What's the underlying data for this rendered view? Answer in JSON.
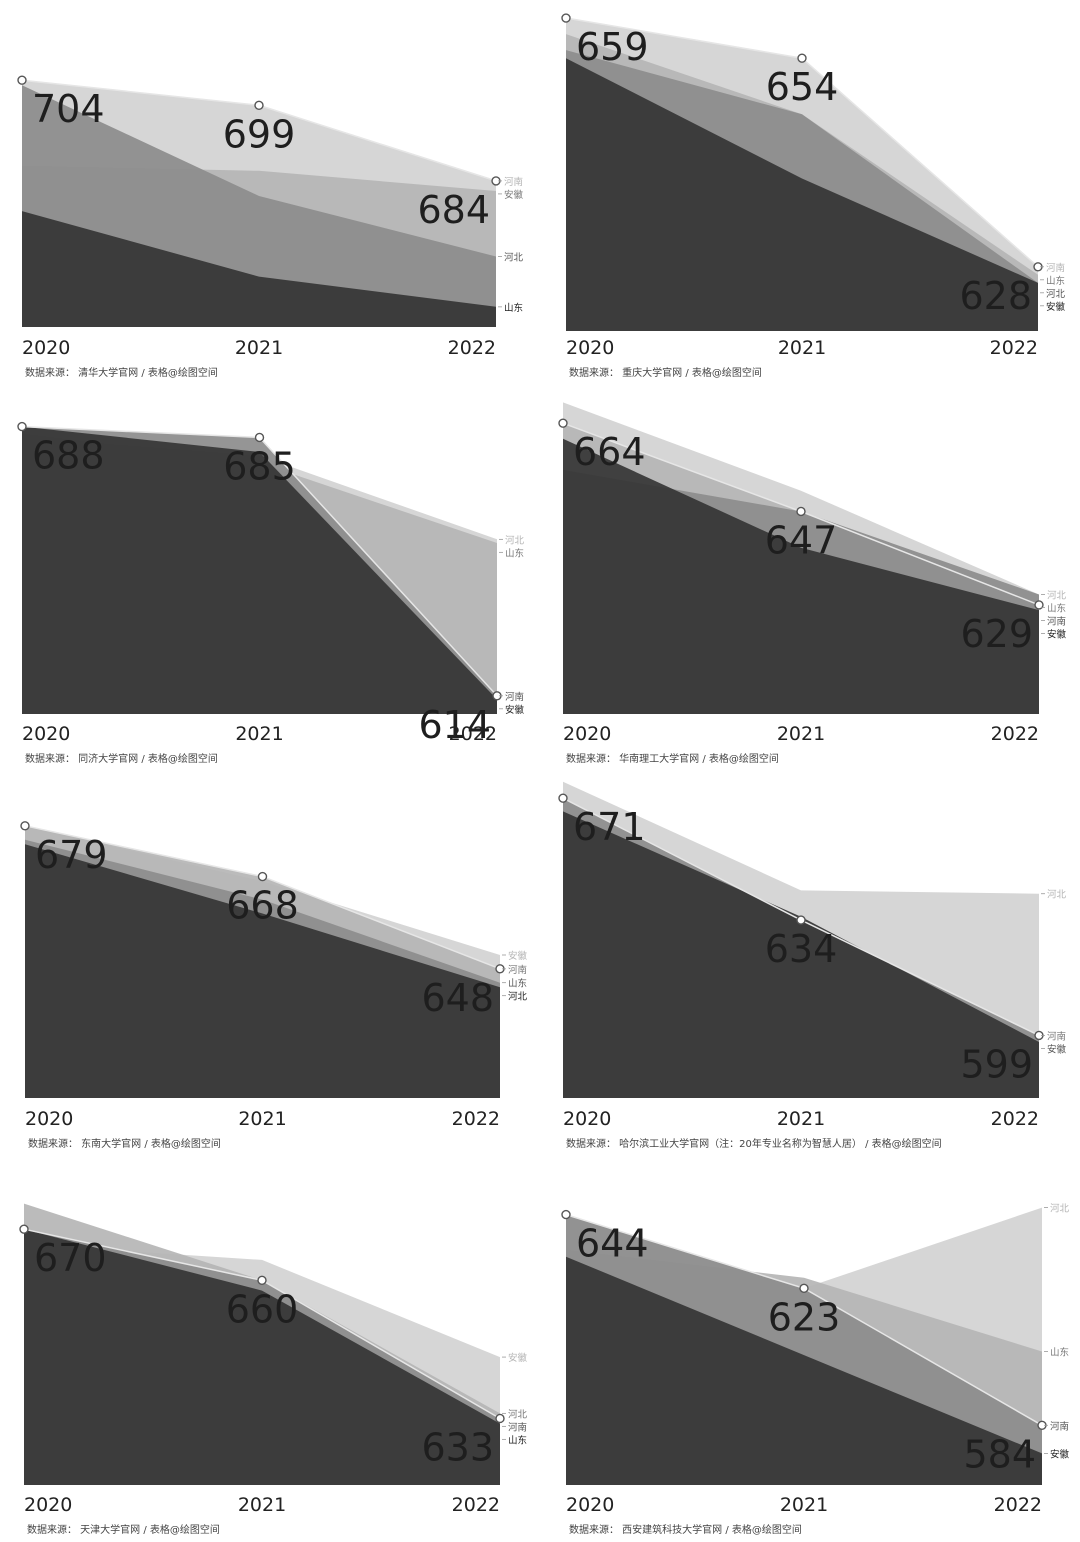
{
  "chart_data": [
    {
      "type": "area",
      "x": [
        "2020",
        "2021",
        "2022"
      ],
      "series": [
        {
          "name": "安徽",
          "values": [
            687,
            686,
            682
          ]
        },
        {
          "name": "河南",
          "values": [
            704,
            699,
            684
          ]
        },
        {
          "name": "河北",
          "values": [
            703,
            681,
            669
          ]
        },
        {
          "name": "山东",
          "values": [
            678,
            665,
            659
          ]
        }
      ],
      "ylim": [
        655,
        708
      ],
      "highlight_values": [
        "704",
        "699",
        "684"
      ],
      "highlight_series": "河南",
      "source": "数据来源：  清华大学官网      /      表格@绘图空间"
    },
    {
      "type": "area",
      "x": [
        "2020",
        "2021",
        "2022"
      ],
      "series": [
        {
          "name": "河南",
          "values": [
            659,
            654,
            628
          ]
        },
        {
          "name": "山东",
          "values": [
            657,
            647,
            627
          ]
        },
        {
          "name": "河北",
          "values": [
            655,
            647,
            626
          ]
        },
        {
          "name": "安徽",
          "values": [
            654,
            639,
            626
          ]
        }
      ],
      "ylim": [
        620,
        660
      ],
      "highlight_values": [
        "659",
        "654",
        "628"
      ],
      "highlight_series": "河南",
      "source": "数据来源：  重庆大学官网      /      表格@绘图空间"
    },
    {
      "type": "area",
      "x": [
        "2020",
        "2021",
        "2022"
      ],
      "series": [
        {
          "name": "河南",
          "values": [
            688,
            685,
            614
          ]
        },
        {
          "name": "安徽",
          "values": [
            688,
            681,
            613
          ]
        },
        {
          "name": "河北",
          "values": [
            685,
            680,
            657
          ]
        },
        {
          "name": "山东",
          "values": [
            686,
            678,
            656
          ]
        }
      ],
      "ylim": [
        609,
        692
      ],
      "highlight_values": [
        "688",
        "685",
        "614"
      ],
      "highlight_series": "河南",
      "source": "数据来源：  同济大学官网      /      表格@绘图空间"
    },
    {
      "type": "area",
      "x": [
        "2020",
        "2021",
        "2022"
      ],
      "series": [
        {
          "name": "河北",
          "values": [
            668,
            651,
            631
          ]
        },
        {
          "name": "河南",
          "values": [
            664,
            647,
            629
          ]
        },
        {
          "name": "安徽",
          "values": [
            661,
            640,
            628
          ]
        },
        {
          "name": "山东",
          "values": [
            655,
            647,
            631
          ]
        }
      ],
      "ylim": [
        608,
        670
      ],
      "highlight_values": [
        "664",
        "647",
        "629"
      ],
      "highlight_series": "河南",
      "source": "数据来源：  华南理工大学官网      /      表格@绘图空间"
    },
    {
      "type": "area",
      "x": [
        "2020",
        "2021",
        "2022"
      ],
      "series": [
        {
          "name": "安徽",
          "values": [
            679,
            667,
            651
          ]
        },
        {
          "name": "河南",
          "values": [
            679,
            668,
            648
          ]
        },
        {
          "name": "山东",
          "values": [
            676,
            663,
            645
          ]
        },
        {
          "name": "河北",
          "values": [
            675,
            660,
            644
          ]
        }
      ],
      "ylim": [
        620,
        682
      ],
      "highlight_values": [
        "679",
        "668",
        "648"
      ],
      "highlight_series": "河南",
      "source": "数据来源：  东南大学官网      /      表格@绘图空间"
    },
    {
      "type": "area",
      "x": [
        "2020",
        "2021",
        "2022"
      ],
      "series": [
        {
          "name": "河北",
          "values": [
            676,
            643,
            642
          ]
        },
        {
          "name": "河南",
          "values": [
            671,
            634,
            599
          ]
        },
        {
          "name": "安徽",
          "values": [
            667,
            635,
            597
          ]
        }
      ],
      "ylim": [
        580,
        675
      ],
      "highlight_values": [
        "671",
        "634",
        "599"
      ],
      "highlight_series": "河南",
      "source": "数据来源：  哈尔滨工业大学官网（注：20年专业名称为智慧人居）      /      表格@绘图空间"
    },
    {
      "type": "area",
      "x": [
        "2020",
        "2021",
        "2022"
      ],
      "series": [
        {
          "name": "河北",
          "values": [
            675,
            660,
            634
          ]
        },
        {
          "name": "山东",
          "values": [
            670,
            658,
            632
          ]
        },
        {
          "name": "河南",
          "values": [
            670,
            660,
            633
          ]
        },
        {
          "name": "安徽",
          "values": [
            667,
            664,
            645
          ]
        }
      ],
      "ylim": [
        620,
        680
      ],
      "highlight_values": [
        "670",
        "660",
        "633"
      ],
      "highlight_series": "河南",
      "source": "数据来源：  天津大学官网      /      表格@绘图空间"
    },
    {
      "type": "area",
      "x": [
        "2020",
        "2021",
        "2022"
      ],
      "series": [
        {
          "name": "河北",
          "values": [
            644,
            623,
            646
          ]
        },
        {
          "name": "山东",
          "values": [
            634,
            626,
            605
          ]
        },
        {
          "name": "河南",
          "values": [
            644,
            623,
            584
          ]
        },
        {
          "name": "安徽",
          "values": [
            632,
            604,
            576
          ]
        }
      ],
      "ylim": [
        567,
        651
      ],
      "highlight_values": [
        "644",
        "623",
        "584"
      ],
      "highlight_series": "河南",
      "source": "数据来源：  西安建筑科技大学官网      /      表格@绘图空间"
    }
  ]
}
